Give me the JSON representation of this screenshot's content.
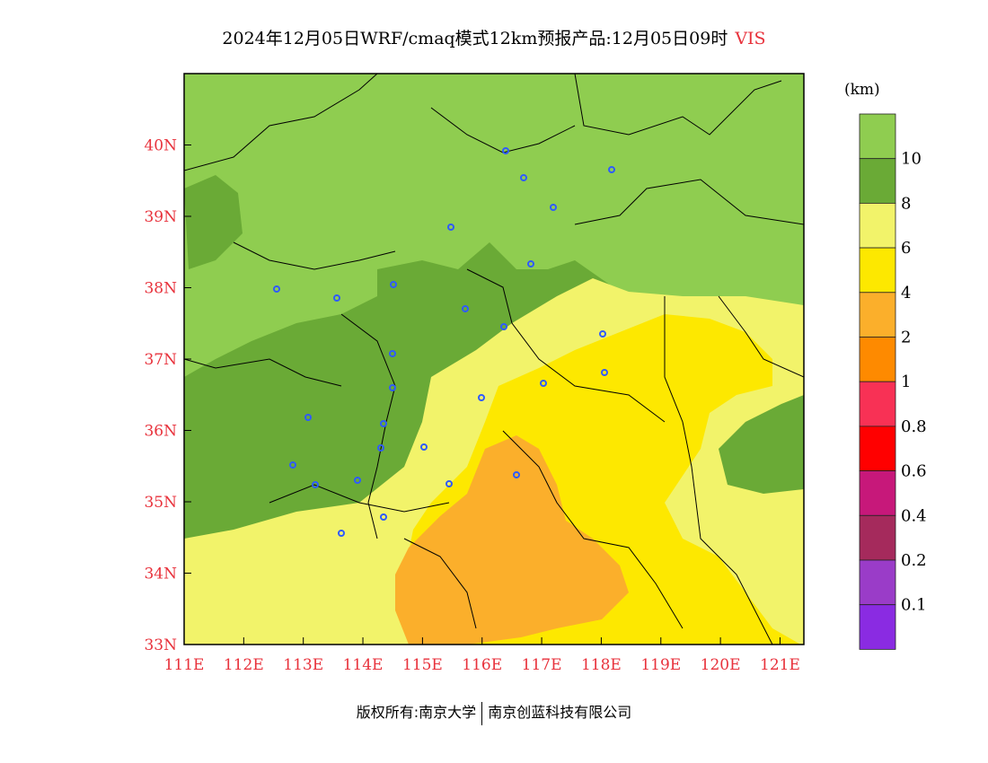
{
  "title": {
    "main": "2024年12月05日WRF/cmaq模式12km预报产品:12月05日09时",
    "variable": "VIS",
    "variable_color": "#e8323c"
  },
  "map": {
    "lat_labels": [
      "40N",
      "39N",
      "38N",
      "37N",
      "36N",
      "35N",
      "34N",
      "33N"
    ],
    "lon_labels": [
      "111E",
      "112E",
      "113E",
      "114E",
      "115E",
      "116E",
      "117E",
      "118E",
      "119E",
      "120E",
      "121E"
    ],
    "lat_range": [
      33,
      41
    ],
    "lon_range": [
      111,
      121.4
    ],
    "axis_label_color": "#e8323c",
    "station_marker_color": "#2f5bff"
  },
  "legend": {
    "unit": "(km)",
    "levels": [
      {
        "label": "",
        "color": "#8fcd50"
      },
      {
        "label": "10",
        "color": "#6aaa36"
      },
      {
        "label": "8",
        "color": "#f2f36a"
      },
      {
        "label": "6",
        "color": "#fde800"
      },
      {
        "label": "4",
        "color": "#fbaf2b"
      },
      {
        "label": "2",
        "color": "#fe8a00"
      },
      {
        "label": "1",
        "color": "#f83155"
      },
      {
        "label": "0.8",
        "color": "#ff0000"
      },
      {
        "label": "0.6",
        "color": "#c7187a"
      },
      {
        "label": "0.4",
        "color": "#a52a5c"
      },
      {
        "label": "0.2",
        "color": "#9a3cc8"
      },
      {
        "label": "0.1",
        "color": "#8a2be2"
      }
    ]
  },
  "copyright": {
    "left": "版权所有:南京大学",
    "right": "南京创蓝科技有限公司"
  }
}
